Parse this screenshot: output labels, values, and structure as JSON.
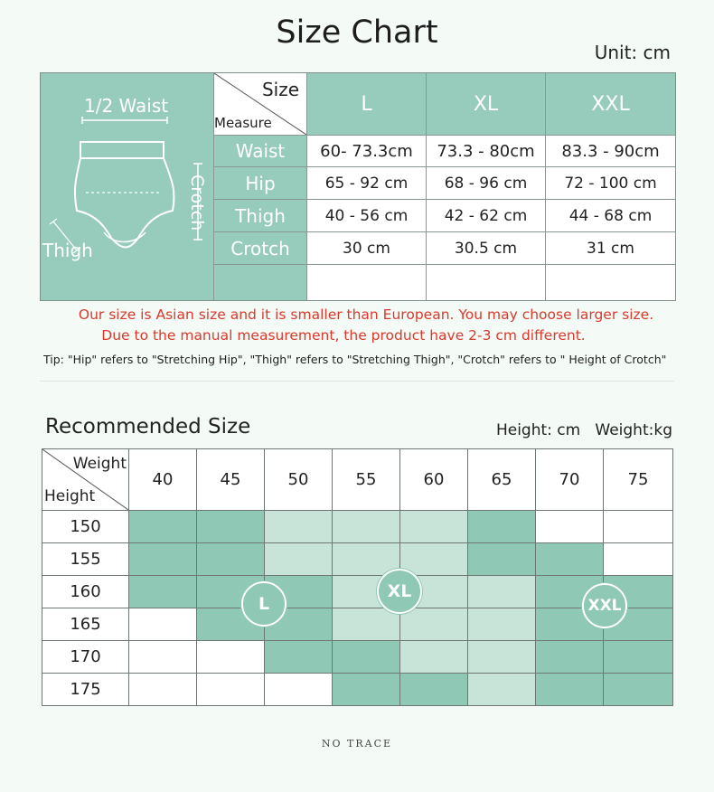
{
  "title": "Size Chart",
  "unit": "Unit: cm",
  "size_chart": {
    "diagram": {
      "half_waist_label": "1/2 Waist",
      "crotch_label": "Crotch",
      "thigh_label": "Thigh"
    },
    "corner": {
      "top": "Size",
      "bottom": "Measure"
    },
    "sizes": [
      "L",
      "XL",
      "XXL"
    ],
    "rows": [
      {
        "label": "Waist",
        "values": [
          "60- 73.3cm",
          "73.3 - 80cm",
          "83.3 - 90cm"
        ]
      },
      {
        "label": "Hip",
        "values": [
          "65 - 92 cm",
          "68 - 96 cm",
          "72 - 100 cm"
        ]
      },
      {
        "label": "Thigh",
        "values": [
          "40 - 56 cm",
          "42 - 62 cm",
          "44 - 68 cm"
        ]
      },
      {
        "label": "Crotch",
        "values": [
          "30 cm",
          "30.5 cm",
          "31 cm"
        ]
      }
    ]
  },
  "notes": {
    "line1": "Our size is Asian size and it is smaller than European. You may choose larger size.",
    "line2": "Due to the manual measurement, the product have 2-3 cm different.",
    "tip": "Tip: \"Hip\" refers to \"Stretching Hip\", \"Thigh\" refers to \"Stretching Thigh\", \"Crotch\" refers to \" Height of Crotch\""
  },
  "recommended": {
    "title": "Recommended Size",
    "units": "Height: cm   Weight:kg",
    "corner": {
      "top": "Weight",
      "bottom": "Height"
    },
    "weights": [
      "40",
      "45",
      "50",
      "55",
      "60",
      "65",
      "70",
      "75"
    ],
    "heights": [
      "150",
      "155",
      "160",
      "165",
      "170",
      "175"
    ],
    "grid": [
      [
        "L",
        "L",
        "XL",
        "XL",
        "XL",
        "XXL",
        "",
        ""
      ],
      [
        "L",
        "L",
        "XL",
        "XL",
        "XL",
        "XXL",
        "XXL",
        ""
      ],
      [
        "L",
        "L",
        "L",
        "XL",
        "XL",
        "XL",
        "XXL",
        "XXL"
      ],
      [
        "",
        "L",
        "L",
        "XL",
        "XL",
        "XL",
        "XXL",
        "XXL"
      ],
      [
        "",
        "",
        "L",
        "L",
        "XL",
        "XL",
        "XXL",
        "XXL"
      ],
      [
        "",
        "",
        "",
        "L",
        "L",
        "XL",
        "XXL",
        "XXL"
      ]
    ],
    "badges": [
      "L",
      "XL",
      "XXL"
    ],
    "colors": {
      "L": "#8fc8b4",
      "XL": "#c8e4d9",
      "XXL": "#8fc8b4"
    }
  },
  "brand": "NO TRACE"
}
